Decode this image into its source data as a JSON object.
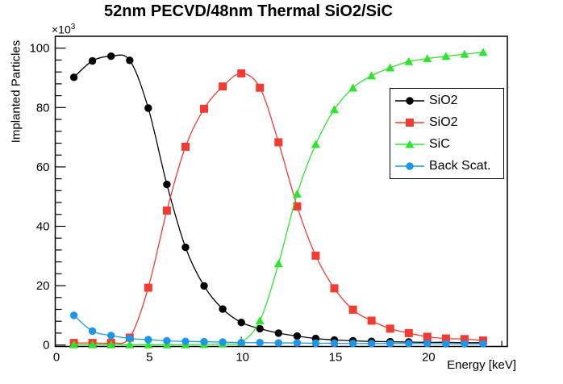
{
  "title": "52nm PECVD/48nm Thermal SiO2/SiC",
  "y_exponent_base": "×10",
  "y_exponent_power": "3",
  "chart_data": {
    "type": "line",
    "title": "52nm PECVD/48nm Thermal SiO2/SiC",
    "xlabel": "Energy [keV]",
    "ylabel": "Implanted Particles",
    "y_scale_note": "×10³",
    "grid": false,
    "legend_position": "middle-right",
    "xlim": [
      0,
      24.3
    ],
    "ylim": [
      -0.5,
      104
    ],
    "x_ticks": [
      0,
      5,
      10,
      15,
      20
    ],
    "y_ticks": [
      0,
      20,
      40,
      60,
      80,
      100
    ],
    "x_minor_step": 1,
    "y_minor_step": 4,
    "x": [
      1,
      2,
      3,
      4,
      5,
      6,
      7,
      8,
      9,
      10,
      11,
      12,
      13,
      14,
      15,
      16,
      17,
      18,
      19,
      20,
      21,
      22,
      23
    ],
    "series": [
      {
        "name": "SiO2",
        "marker": "circle",
        "color": "#000000",
        "values": [
          90.2,
          95.7,
          97.3,
          95.9,
          79.8,
          54.1,
          32.9,
          19.9,
          12.1,
          7.6,
          5.5,
          4.0,
          3.0,
          2.2,
          1.7,
          1.4,
          1.2,
          1.1,
          1.0,
          0.9,
          0.9,
          0.8,
          0.8
        ]
      },
      {
        "name": "SiO2",
        "marker": "square",
        "color": "#f23b31",
        "values": [
          0.7,
          0.7,
          0.7,
          2.5,
          19.3,
          45.3,
          66.8,
          79.6,
          87.1,
          91.5,
          86.7,
          68.3,
          46.7,
          30.1,
          19.1,
          11.9,
          8.2,
          5.5,
          4.0,
          2.8,
          2.2,
          2.0,
          1.5
        ]
      },
      {
        "name": "SiC",
        "marker": "triangle",
        "color": "#2ee52e",
        "values": [
          0.1,
          0.1,
          0.1,
          0.1,
          0.1,
          0.1,
          0.1,
          0.2,
          0.4,
          1.0,
          8.2,
          27.4,
          50.9,
          67.6,
          79.3,
          86.6,
          90.7,
          93.4,
          95.5,
          96.5,
          97.3,
          98.0,
          98.6
        ]
      },
      {
        "name": "Back Scat.",
        "marker": "circle",
        "color": "#1e96e8",
        "values": [
          10.0,
          4.7,
          3.2,
          2.2,
          1.8,
          1.4,
          1.2,
          1.1,
          1.0,
          0.8,
          0.8,
          0.7,
          0.7,
          0.6,
          0.6,
          0.5,
          0.5,
          0.5,
          0.5,
          0.5,
          0.4,
          0.4,
          0.4
        ]
      }
    ]
  }
}
